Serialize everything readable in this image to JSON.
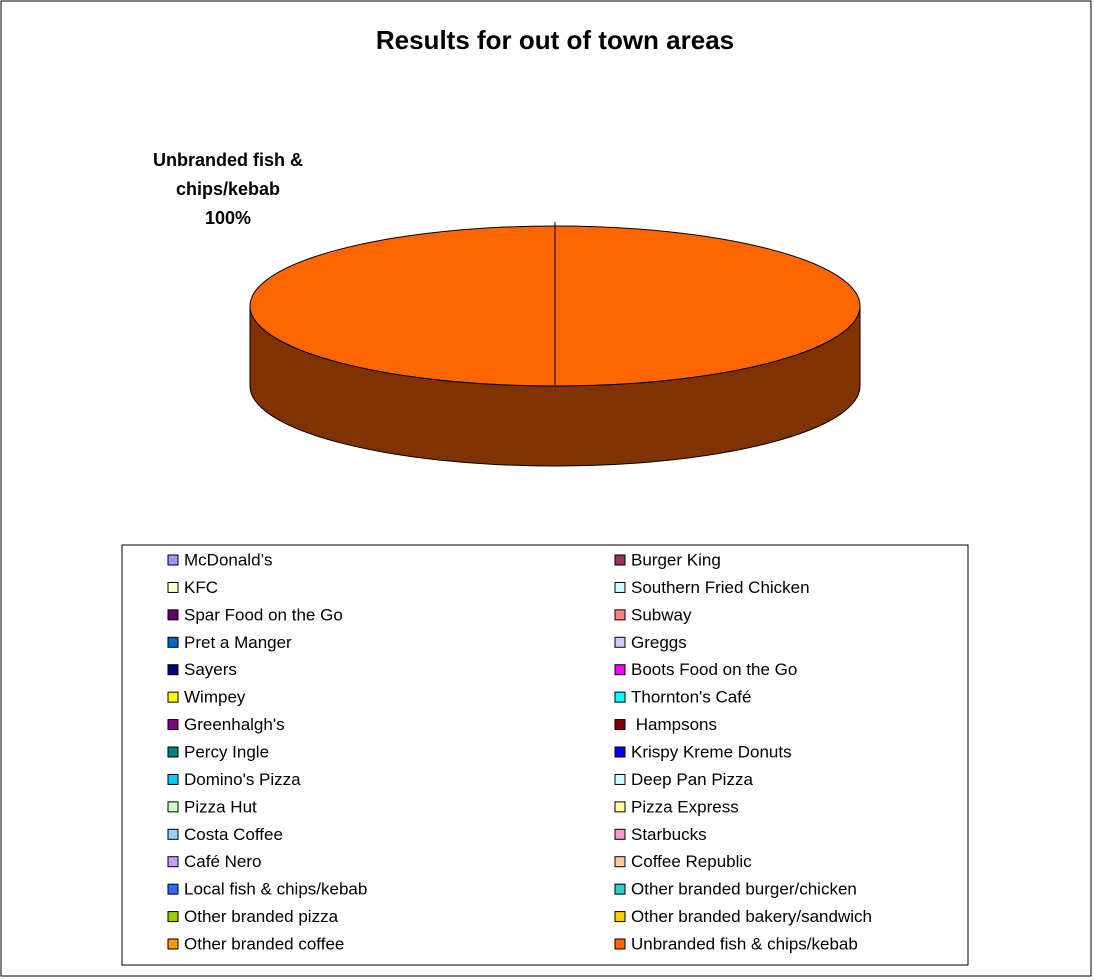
{
  "chart_data": {
    "type": "pie",
    "title": "Results for out of town areas",
    "categories": [
      "McDonald’s",
      "Burger King",
      "KFC",
      "Southern Fried Chicken",
      "Spar Food on the Go",
      "Subway",
      "Pret a Manger",
      "Greggs",
      "Sayers",
      "Boots Food on the Go",
      "Wimpey",
      "Thornton's Café",
      "Greenhalgh's",
      " Hampsons",
      "Percy Ingle",
      "Krispy Kreme Donuts",
      "Domino's Pizza",
      "Deep Pan Pizza",
      "Pizza Hut",
      "Pizza Express",
      "Costa Coffee",
      "Starbucks",
      "Café Nero",
      "Coffee Republic",
      "Local fish & chips/kebab",
      "Other branded burger/chicken",
      "Other branded pizza",
      "Other branded bakery/sandwich",
      "Other branded coffee",
      "Unbranded fish & chips/kebab"
    ],
    "values": [
      0,
      0,
      0,
      0,
      0,
      0,
      0,
      0,
      0,
      0,
      0,
      0,
      0,
      0,
      0,
      0,
      0,
      0,
      0,
      0,
      0,
      0,
      0,
      0,
      0,
      0,
      0,
      0,
      0,
      100
    ],
    "value_labels": [
      null,
      null,
      null,
      null,
      null,
      null,
      null,
      null,
      null,
      null,
      null,
      null,
      null,
      null,
      null,
      null,
      null,
      null,
      null,
      null,
      null,
      null,
      null,
      null,
      null,
      null,
      null,
      null,
      null,
      "100%"
    ],
    "colors": [
      "#9999ff",
      "#993366",
      "#ffffcc",
      "#ccffff",
      "#660066",
      "#ff8080",
      "#0066cc",
      "#ccccff",
      "#000080",
      "#ff00ff",
      "#ffff00",
      "#00ffff",
      "#800080",
      "#800000",
      "#008080",
      "#0000ff",
      "#00ccff",
      "#ccffff",
      "#ccffcc",
      "#ffff99",
      "#99ccff",
      "#ff99cc",
      "#cc99ff",
      "#ffcc99",
      "#3366ff",
      "#33cccc",
      "#99cc00",
      "#ffcc00",
      "#ff9900",
      "#ff6600"
    ],
    "legend": "bottom"
  }
}
